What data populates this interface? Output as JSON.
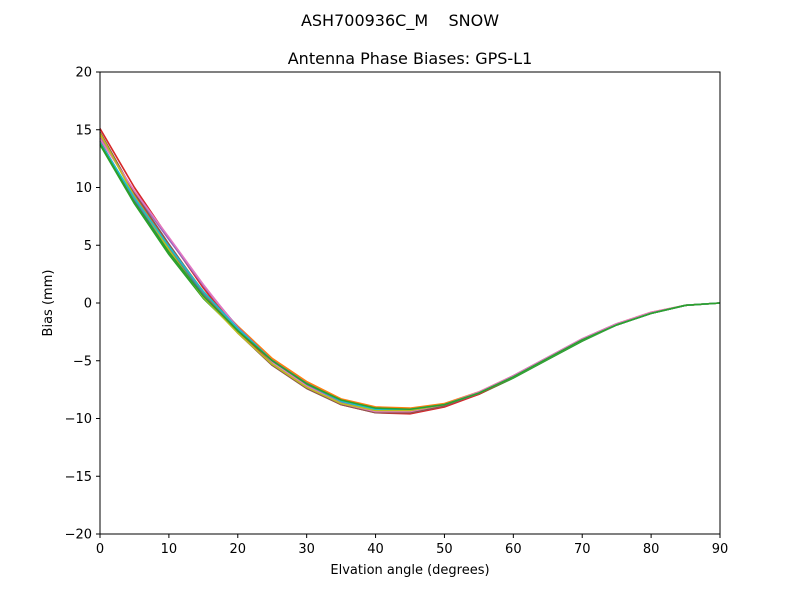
{
  "chart_data": {
    "type": "line",
    "suptitle": "ASH700936C_M    SNOW",
    "title": "Antenna Phase Biases: GPS-L1",
    "xlabel": "Elvation angle (degrees)",
    "ylabel": "Bias (mm)",
    "xlim": [
      0,
      90
    ],
    "ylim": [
      -20,
      20
    ],
    "xticks": [
      0,
      10,
      20,
      30,
      40,
      50,
      60,
      70,
      80,
      90
    ],
    "yticks": [
      -20,
      -15,
      -10,
      -5,
      0,
      5,
      10,
      15,
      20
    ],
    "grid": false,
    "legend": "none",
    "x": [
      0,
      5,
      10,
      15,
      20,
      25,
      30,
      35,
      40,
      45,
      50,
      55,
      60,
      65,
      70,
      75,
      80,
      85,
      90
    ],
    "series": [
      {
        "color": "#2ca02c",
        "values": [
          13.7,
          8.6,
          4.2,
          0.4,
          -2.5,
          -5.1,
          -7.1,
          -8.5,
          -9.2,
          -9.3,
          -8.9,
          -7.9,
          -6.5,
          -4.9,
          -3.3,
          -1.9,
          -0.9,
          -0.2,
          0.0
        ]
      },
      {
        "color": "#1f77b4",
        "values": [
          14.0,
          8.9,
          4.6,
          0.8,
          -2.2,
          -4.9,
          -6.9,
          -8.4,
          -9.1,
          -9.2,
          -8.8,
          -7.8,
          -6.4,
          -4.8,
          -3.2,
          -1.9,
          -0.9,
          -0.2,
          0.0
        ]
      },
      {
        "color": "#ff7f0e",
        "values": [
          14.6,
          9.3,
          5.0,
          1.0,
          -2.0,
          -4.8,
          -6.8,
          -8.3,
          -9.0,
          -9.1,
          -8.7,
          -7.7,
          -6.3,
          -4.7,
          -3.1,
          -1.8,
          -0.8,
          -0.2,
          0.0
        ]
      },
      {
        "color": "#d62728",
        "values": [
          15.1,
          10.0,
          5.6,
          1.3,
          -2.4,
          -5.3,
          -7.3,
          -8.8,
          -9.5,
          -9.6,
          -9.0,
          -7.9,
          -6.4,
          -4.8,
          -3.2,
          -1.9,
          -0.9,
          -0.2,
          0.0
        ]
      },
      {
        "color": "#9467bd",
        "values": [
          14.3,
          9.6,
          5.5,
          1.5,
          -2.1,
          -5.0,
          -7.1,
          -8.6,
          -9.4,
          -9.5,
          -8.9,
          -7.8,
          -6.3,
          -4.7,
          -3.1,
          -1.8,
          -0.9,
          -0.2,
          0.0
        ]
      },
      {
        "color": "#8c564b",
        "values": [
          14.8,
          9.5,
          5.1,
          0.9,
          -2.6,
          -5.4,
          -7.4,
          -8.8,
          -9.5,
          -9.5,
          -8.9,
          -7.8,
          -6.4,
          -4.8,
          -3.2,
          -1.9,
          -0.9,
          -0.2,
          0.0
        ]
      },
      {
        "color": "#e377c2",
        "values": [
          14.2,
          9.7,
          5.7,
          1.6,
          -2.2,
          -5.1,
          -7.2,
          -8.7,
          -9.4,
          -9.4,
          -8.8,
          -7.7,
          -6.3,
          -4.7,
          -3.1,
          -1.8,
          -0.8,
          -0.2,
          0.0
        ]
      },
      {
        "color": "#7f7f7f",
        "values": [
          14.0,
          9.0,
          4.8,
          0.9,
          -2.3,
          -5.0,
          -7.0,
          -8.5,
          -9.2,
          -9.3,
          -8.8,
          -7.8,
          -6.4,
          -4.8,
          -3.2,
          -1.9,
          -0.9,
          -0.2,
          0.0
        ]
      },
      {
        "color": "#bcbd22",
        "values": [
          14.7,
          9.2,
          4.6,
          0.5,
          -2.6,
          -5.3,
          -7.3,
          -8.7,
          -9.3,
          -9.3,
          -8.8,
          -7.8,
          -6.4,
          -4.8,
          -3.2,
          -1.9,
          -0.9,
          -0.2,
          0.0
        ]
      },
      {
        "color": "#17becf",
        "values": [
          13.9,
          9.1,
          4.9,
          1.0,
          -2.2,
          -5.0,
          -7.0,
          -8.5,
          -9.2,
          -9.2,
          -8.8,
          -7.8,
          -6.4,
          -4.8,
          -3.2,
          -1.9,
          -0.9,
          -0.2,
          0.0
        ]
      },
      {
        "color": "#2ca02c",
        "values": [
          13.8,
          8.7,
          4.4,
          0.6,
          -2.4,
          -5.0,
          -7.0,
          -8.4,
          -9.1,
          -9.2,
          -8.8,
          -7.8,
          -6.4,
          -4.8,
          -3.2,
          -1.9,
          -0.9,
          -0.2,
          0.0
        ]
      }
    ]
  }
}
